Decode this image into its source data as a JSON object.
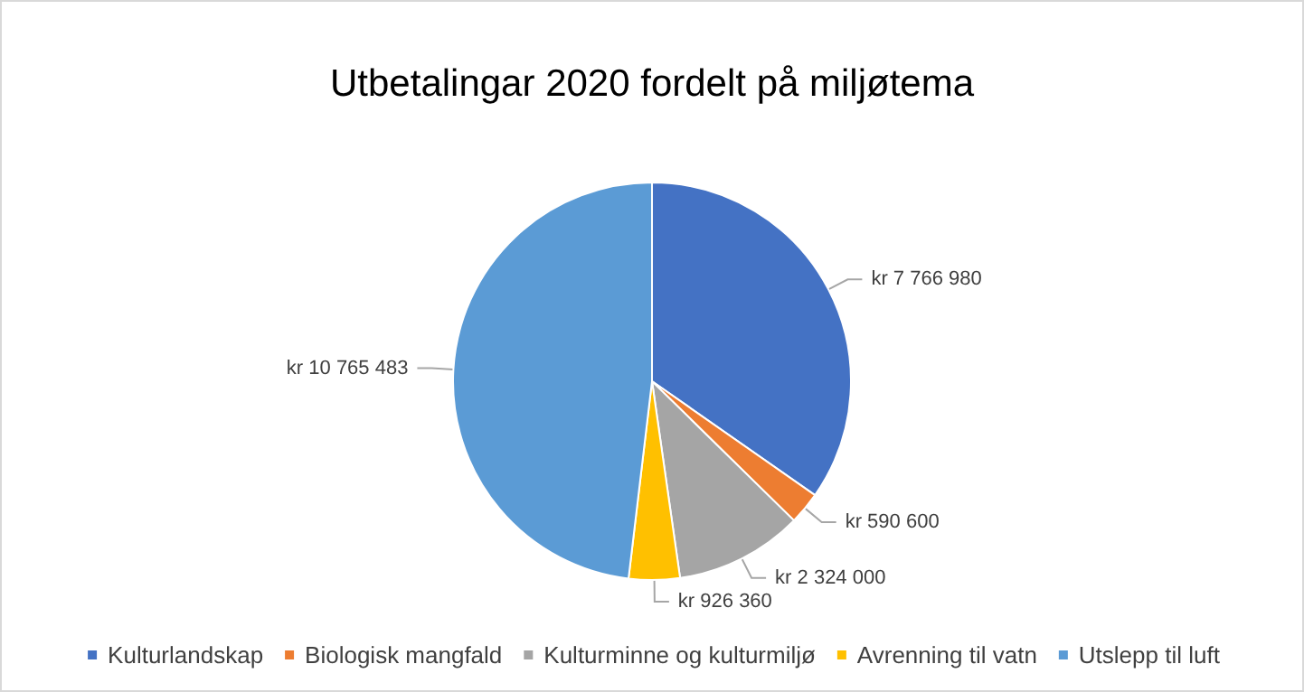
{
  "chart_data": {
    "type": "pie",
    "title": "Utbetalingar 2020 fordelt på miljøtema",
    "categories": [
      "Kulturlandskap",
      "Biologisk mangfald",
      "Kulturminne og kulturmiljø",
      "Avrenning til vatn",
      "Utslepp til luft"
    ],
    "values": [
      7766980,
      590600,
      2324000,
      926360,
      10765483
    ],
    "colors": [
      "#4472c4",
      "#ed7d31",
      "#a5a5a5",
      "#ffc000",
      "#5b9bd5"
    ],
    "value_labels": [
      "kr 7 766 980",
      "kr 590 600",
      "kr 2 324 000",
      "kr 926 360",
      "kr 10 765 483"
    ],
    "legend": "bottom"
  }
}
